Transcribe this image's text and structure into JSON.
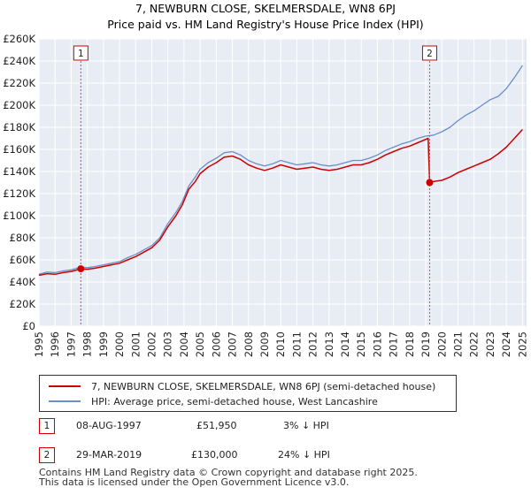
{
  "chart_data": {
    "type": "line",
    "title": "7, NEWBURN CLOSE, SKELMERSDALE, WN8 6PJ",
    "subtitle": "Price paid vs. HM Land Registry's House Price Index (HPI)",
    "xlabel": "",
    "ylabel": "",
    "xlim": [
      1995,
      2025.2
    ],
    "ylim": [
      0,
      260000
    ],
    "y_ticks": [
      0,
      20000,
      40000,
      60000,
      80000,
      100000,
      120000,
      140000,
      160000,
      180000,
      200000,
      220000,
      240000,
      260000
    ],
    "y_tick_labels": [
      "£0",
      "£20K",
      "£40K",
      "£60K",
      "£80K",
      "£100K",
      "£120K",
      "£140K",
      "£160K",
      "£180K",
      "£200K",
      "£220K",
      "£240K",
      "£260K"
    ],
    "x_ticks": [
      1995,
      1996,
      1997,
      1998,
      1999,
      2000,
      2001,
      2002,
      2003,
      2004,
      2005,
      2006,
      2007,
      2008,
      2009,
      2010,
      2011,
      2012,
      2013,
      2014,
      2015,
      2016,
      2017,
      2018,
      2019,
      2020,
      2021,
      2022,
      2023,
      2024,
      2025
    ],
    "x_tick_labels": [
      "1995",
      "1996",
      "1997",
      "1998",
      "1999",
      "2000",
      "2001",
      "2002",
      "2003",
      "2004",
      "2005",
      "2006",
      "2007",
      "2008",
      "2009",
      "2010",
      "2011",
      "2012",
      "2013",
      "2014",
      "2015",
      "2016",
      "2017",
      "2018",
      "2019",
      "2020",
      "2021",
      "2022",
      "2023",
      "2024",
      "2025"
    ],
    "grid": true,
    "series": [
      {
        "name": "HPI: Average price, semi-detached house, West Lancashire",
        "color": "#6a8fc6",
        "x": [
          1995,
          1995.5,
          1996,
          1996.5,
          1997,
          1997.6,
          1998,
          1998.5,
          1999,
          1999.5,
          2000,
          2000.5,
          2001,
          2001.5,
          2002,
          2002.5,
          2003,
          2003.5,
          2003.9,
          2004.3,
          2004.7,
          2005,
          2005.5,
          2006,
          2006.5,
          2007,
          2007.5,
          2008,
          2008.5,
          2009,
          2009.5,
          2010,
          2010.5,
          2011,
          2011.5,
          2012,
          2012.5,
          2013,
          2013.5,
          2014,
          2014.5,
          2015,
          2015.5,
          2016,
          2016.5,
          2017,
          2017.5,
          2018,
          2018.5,
          2019,
          2019.5,
          2020,
          2020.5,
          2021,
          2021.5,
          2022,
          2022.5,
          2023,
          2023.5,
          2024,
          2024.5,
          2025
        ],
        "values": [
          47000,
          49000,
          48500,
          50000,
          51000,
          53500,
          53000,
          54000,
          55500,
          57000,
          58500,
          62000,
          65000,
          69000,
          73000,
          80000,
          93000,
          103000,
          113000,
          127000,
          135000,
          142000,
          148000,
          152000,
          157000,
          158000,
          155000,
          150000,
          147000,
          145000,
          147000,
          150000,
          148000,
          146000,
          147000,
          148000,
          146000,
          145000,
          146000,
          148000,
          150000,
          150000,
          152000,
          155000,
          159000,
          162000,
          165000,
          167000,
          170000,
          172000,
          173000,
          176000,
          180000,
          186000,
          191000,
          195000,
          200000,
          205000,
          208000,
          215000,
          225000,
          236000
        ]
      },
      {
        "name": "7, NEWBURN CLOSE, SKELMERSDALE, WN8 6PJ (semi-detached house)",
        "color": "#cc0000",
        "x": [
          1995,
          1995.5,
          1996,
          1996.5,
          1997,
          1997.6,
          1998,
          1998.5,
          1999,
          1999.5,
          2000,
          2000.5,
          2001,
          2001.5,
          2002,
          2002.5,
          2003,
          2003.5,
          2003.9,
          2004.3,
          2004.7,
          2005,
          2005.5,
          2006,
          2006.5,
          2007,
          2007.5,
          2008,
          2008.5,
          2009,
          2009.5,
          2010,
          2010.5,
          2011,
          2011.5,
          2012,
          2012.5,
          2013,
          2013.5,
          2014,
          2014.5,
          2015,
          2015.5,
          2016,
          2016.5,
          2017,
          2017.5,
          2018,
          2018.5,
          2019.15,
          2019.24,
          2019.5,
          2020,
          2020.5,
          2021,
          2021.5,
          2022,
          2022.5,
          2023,
          2023.5,
          2024,
          2024.5,
          2025
        ],
        "values": [
          46000,
          47500,
          47000,
          48500,
          49500,
          51950,
          51500,
          52500,
          54000,
          55500,
          57000,
          60000,
          63000,
          67000,
          71000,
          78000,
          90000,
          100000,
          110000,
          124000,
          131000,
          138000,
          144000,
          148000,
          153000,
          154000,
          151000,
          146000,
          143000,
          141000,
          143000,
          146000,
          144000,
          142000,
          143000,
          144000,
          142000,
          141000,
          142000,
          144000,
          146000,
          146000,
          148000,
          151000,
          155000,
          158000,
          161000,
          163000,
          166000,
          170000,
          130000,
          131000,
          132000,
          135000,
          139000,
          142000,
          145000,
          148000,
          151000,
          156000,
          162000,
          170000,
          178000
        ]
      }
    ],
    "annotations": [
      {
        "label": "1",
        "x": 1997.6,
        "y": 51950
      },
      {
        "label": "2",
        "x": 2019.24,
        "y": 130000
      }
    ],
    "shaded_region": [
      1995,
      2025.2
    ]
  },
  "legend": {
    "entries": [
      {
        "label": "7, NEWBURN CLOSE, SKELMERSDALE, WN8 6PJ (semi-detached house)",
        "color": "#cc0000"
      },
      {
        "label": "HPI: Average price, semi-detached house, West Lancashire",
        "color": "#6a8fc6"
      }
    ]
  },
  "transactions": [
    {
      "num": "1",
      "date": "08-AUG-1997",
      "price": "£51,950",
      "hpi": "3% ↓ HPI"
    },
    {
      "num": "2",
      "date": "29-MAR-2019",
      "price": "£130,000",
      "hpi": "24% ↓ HPI"
    }
  ],
  "footer": {
    "line1": "Contains HM Land Registry data © Crown copyright and database right 2025.",
    "line2": "This data is licensed under the Open Government Licence v3.0."
  }
}
